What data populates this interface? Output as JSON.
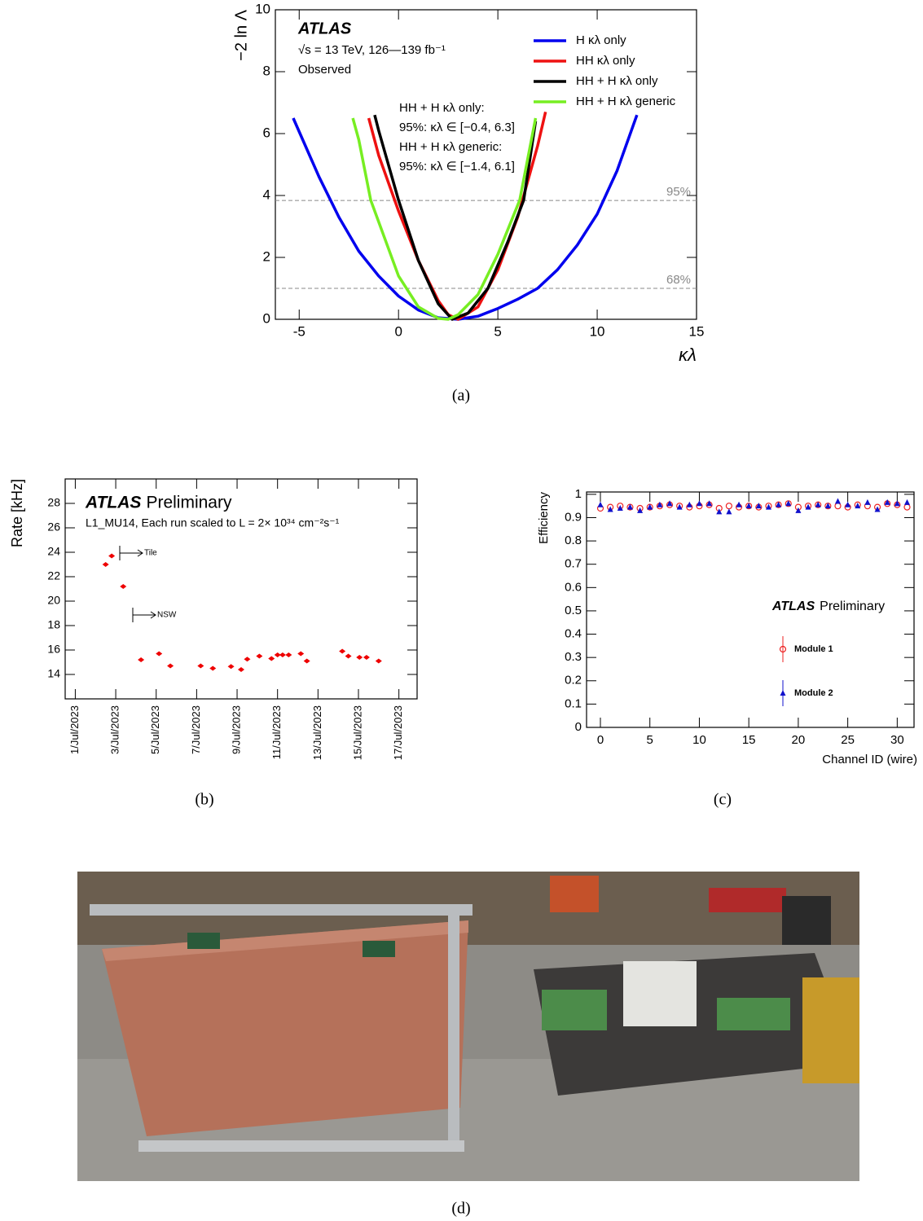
{
  "chart_data": [
    {
      "type": "line",
      "caption": "(a)",
      "atlas_label": "ATLAS",
      "subtitle_lines": [
        "√s = 13 TeV, 126—139 fb⁻¹",
        "Observed"
      ],
      "annotations": [
        "HH + H κλ only:",
        "95%: κλ ∈ [−0.4, 6.3]",
        "HH + H κλ generic:",
        "95%: κλ ∈ [−1.4, 6.1]"
      ],
      "x_label": "κλ",
      "y_label": "−2 ln Λ",
      "xlim": [
        -6.2,
        15
      ],
      "ylim": [
        0,
        10
      ],
      "xticks": [
        -5,
        0,
        5,
        10,
        15
      ],
      "yticks": [
        0,
        2,
        4,
        6,
        8,
        10
      ],
      "hlines": [
        {
          "value": 3.84,
          "label": "95%"
        },
        {
          "value": 1,
          "label": "68%"
        }
      ],
      "series": [
        {
          "name": "H κλ only",
          "color": "#0000ee",
          "x": [
            -5.3,
            -4,
            -3,
            -2,
            -1,
            0,
            1,
            2,
            3,
            4,
            5,
            6,
            7,
            8,
            9,
            10,
            11,
            12
          ],
          "values": [
            6.5,
            4.6,
            3.3,
            2.2,
            1.4,
            0.75,
            0.3,
            0.05,
            0,
            0.1,
            0.35,
            0.65,
            1.0,
            1.6,
            2.4,
            3.4,
            4.8,
            6.6
          ]
        },
        {
          "name": "HH κλ only",
          "color": "#ee1111",
          "x": [
            -1.5,
            -1,
            0,
            1,
            2,
            2.5,
            3,
            4,
            5,
            6,
            7,
            7.4
          ],
          "values": [
            6.5,
            5.3,
            3.5,
            1.9,
            0.6,
            0.15,
            0,
            0.4,
            1.6,
            3.3,
            5.6,
            6.7
          ]
        },
        {
          "name": "HH + H κλ only",
          "color": "#000000",
          "x": [
            -1.2,
            -1,
            0,
            1,
            2,
            2.7,
            3.5,
            4.5,
            5.5,
            6.3,
            6.9
          ],
          "values": [
            6.6,
            6.1,
            3.85,
            1.9,
            0.5,
            0,
            0.2,
            1.0,
            2.5,
            3.85,
            6.4
          ]
        },
        {
          "name": "HH + H κλ generic",
          "color": "#77ee22",
          "x": [
            -2.3,
            -2,
            -1.4,
            0,
            1,
            2,
            2.5,
            3,
            4,
            5,
            6.1,
            6.9
          ],
          "values": [
            6.5,
            5.8,
            3.85,
            1.4,
            0.4,
            0.03,
            0,
            0.15,
            0.8,
            2.1,
            3.85,
            6.5
          ]
        }
      ]
    },
    {
      "type": "scatter",
      "caption": "(b)",
      "atlas_label": "ATLAS",
      "atlas_suffix": "Preliminary",
      "subtitle_lines": [
        "L1_MU14, Each run scaled to L = 2× 10³⁴ cm⁻²s⁻¹"
      ],
      "annotations": [
        "Tile",
        "NSW"
      ],
      "y_label": "Rate [kHz]",
      "xlim": [
        0.5,
        17.9
      ],
      "ylim": [
        12,
        30
      ],
      "xticks": [
        {
          "value": 1,
          "label": "1/Jul/2023"
        },
        {
          "value": 3,
          "label": "3/Jul/2023"
        },
        {
          "value": 5,
          "label": "5/Jul/2023"
        },
        {
          "value": 7,
          "label": "7/Jul/2023"
        },
        {
          "value": 9,
          "label": "9/Jul/2023"
        },
        {
          "value": 11,
          "label": "11/Jul/2023"
        },
        {
          "value": 13,
          "label": "13/Jul/2023"
        },
        {
          "value": 15,
          "label": "15/Jul/2023"
        },
        {
          "value": 17,
          "label": "17/Jul/2023"
        }
      ],
      "yticks": [
        14,
        16,
        18,
        20,
        22,
        24,
        26,
        28
      ],
      "series": [
        {
          "color": "#ee0000",
          "marker": "diamond",
          "x": [
            2.5,
            2.8,
            3.37,
            4.25,
            5.14,
            5.7,
            7.2,
            7.8,
            8.7,
            9.2,
            9.5,
            10.1,
            10.7,
            11.0,
            11.25,
            11.55,
            12.15,
            12.45,
            14.2,
            14.5,
            15.05,
            15.4,
            16.0
          ],
          "values": [
            23.0,
            23.7,
            21.2,
            15.2,
            15.7,
            14.7,
            14.7,
            14.5,
            14.65,
            14.4,
            15.25,
            15.5,
            15.3,
            15.6,
            15.6,
            15.6,
            15.7,
            15.1,
            15.9,
            15.5,
            15.4,
            15.4,
            15.1
          ]
        }
      ]
    },
    {
      "type": "scatter",
      "caption": "(c)",
      "atlas_label": "ATLAS",
      "atlas_suffix": "Preliminary",
      "x_label": "Channel ID (wire)",
      "y_label": "Efficiency",
      "xlim": [
        -1.4,
        31.7
      ],
      "ylim": [
        0,
        1.01
      ],
      "xticks": [
        0,
        5,
        10,
        15,
        20,
        25,
        30
      ],
      "yticks": [
        0,
        0.1,
        0.2,
        0.3,
        0.4,
        0.5,
        0.6,
        0.7,
        0.8,
        0.9,
        1
      ],
      "x": [
        0,
        1,
        2,
        3,
        4,
        5,
        6,
        7,
        8,
        9,
        10,
        11,
        12,
        13,
        14,
        15,
        16,
        17,
        18,
        19,
        20,
        21,
        22,
        23,
        24,
        25,
        26,
        27,
        28,
        29,
        30,
        31
      ],
      "series": [
        {
          "name": "Module 1",
          "color": "#ee2222",
          "marker": "circle-open",
          "values": [
            0.94,
            0.945,
            0.95,
            0.945,
            0.94,
            0.945,
            0.95,
            0.955,
            0.95,
            0.945,
            0.95,
            0.955,
            0.94,
            0.95,
            0.945,
            0.95,
            0.945,
            0.95,
            0.955,
            0.96,
            0.945,
            0.95,
            0.955,
            0.95,
            0.95,
            0.945,
            0.955,
            0.95,
            0.945,
            0.96,
            0.955,
            0.945
          ]
        },
        {
          "name": "Module 2",
          "color": "#1111cc",
          "marker": "triangle",
          "values": [
            0.955,
            0.935,
            0.94,
            0.945,
            0.93,
            0.945,
            0.955,
            0.96,
            0.945,
            0.955,
            0.96,
            0.96,
            0.925,
            0.925,
            0.955,
            0.95,
            0.95,
            0.945,
            0.955,
            0.96,
            0.93,
            0.945,
            0.955,
            0.95,
            0.97,
            0.955,
            0.95,
            0.965,
            0.935,
            0.965,
            0.96,
            0.965
          ]
        }
      ]
    }
  ],
  "photo": {
    "caption": "(d)"
  }
}
